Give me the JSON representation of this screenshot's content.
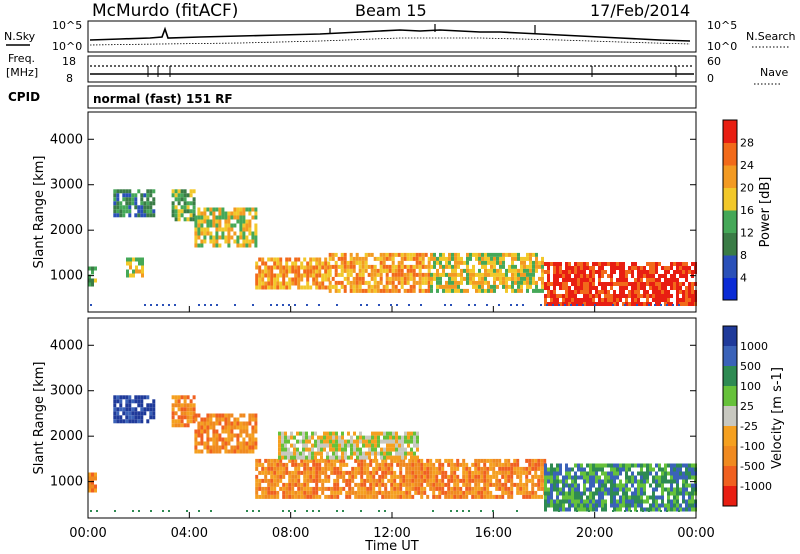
{
  "header": {
    "station": "McMurdo (fitACF)",
    "beam": "Beam 15",
    "date": "17/Feb/2014"
  },
  "top_panel": {
    "left_label": "N.Sky",
    "left_ticks": [
      "10^5",
      "10^0"
    ],
    "right_label": "N.Search",
    "right_ticks": [
      "10^5",
      "10^0"
    ],
    "freq_label_1": "Freq.",
    "freq_label_2": "[MHz]",
    "freq_ticks": [
      "18",
      "8"
    ],
    "nave_label": "Nave",
    "nave_ticks": [
      "60",
      "0"
    ],
    "cpid_label": "CPID",
    "mode_text": "normal (fast) 151 RF"
  },
  "x_axis": {
    "ticks": [
      "00:00",
      "04:00",
      "08:00",
      "12:00",
      "16:00",
      "20:00",
      "00:00"
    ],
    "label": "Time UT"
  },
  "colors": {
    "power": [
      "#0a2bd6",
      "#2a50b8",
      "#3a7c46",
      "#45a858",
      "#f2c82a",
      "#f39a22",
      "#f26a1a",
      "#e81e12"
    ],
    "velocity": [
      "#1f3a9a",
      "#3a62b8",
      "#2e8a52",
      "#66c13a",
      "#c8c8c0",
      "#f5a020",
      "#f08a20",
      "#f06020",
      "#e81e12"
    ]
  },
  "chart_data": [
    {
      "type": "heatmap",
      "title": "Power",
      "ylabel": "Slant Range [km]",
      "xlabel": "Time UT",
      "y_ticks": [
        1000,
        2000,
        3000,
        4000
      ],
      "ylim": [
        200,
        4600
      ],
      "xlim": [
        0,
        24
      ],
      "colorbar_label": "Power [dB]",
      "colorbar_ticks": [
        "4",
        "8",
        "12",
        "16",
        "20",
        "24",
        "28"
      ],
      "regions": [
        {
          "t0": 0.0,
          "t1": 0.3,
          "r0": 800,
          "r1": 1200,
          "level": 3
        },
        {
          "t0": 1.0,
          "t1": 2.6,
          "r0": 2300,
          "r1": 2900,
          "level": 2
        },
        {
          "t0": 1.5,
          "t1": 2.2,
          "r0": 1000,
          "r1": 1400,
          "level": 4
        },
        {
          "t0": 3.3,
          "t1": 4.2,
          "r0": 2200,
          "r1": 2900,
          "level": 3
        },
        {
          "t0": 4.2,
          "t1": 6.6,
          "r0": 1700,
          "r1": 2500,
          "level": 4
        },
        {
          "t0": 6.6,
          "t1": 9.5,
          "r0": 700,
          "r1": 1400,
          "level": 5
        },
        {
          "t0": 9.5,
          "t1": 13.5,
          "r0": 700,
          "r1": 1500,
          "level": 5
        },
        {
          "t0": 13.5,
          "t1": 18.0,
          "r0": 700,
          "r1": 1500,
          "level": 4
        },
        {
          "t0": 18.0,
          "t1": 24.0,
          "r0": 400,
          "r1": 1300,
          "level": 7
        }
      ]
    },
    {
      "type": "heatmap",
      "title": "Velocity",
      "ylabel": "Slant Range [km]",
      "xlabel": "Time UT",
      "y_ticks": [
        1000,
        2000,
        3000,
        4000
      ],
      "ylim": [
        200,
        4600
      ],
      "xlim": [
        0,
        24
      ],
      "colorbar_label": "Velocity [m s-1]",
      "colorbar_ticks": [
        "1000",
        "500",
        "100",
        "25",
        "-25",
        "-100",
        "-500",
        "-1000"
      ],
      "regions": [
        {
          "t0": 0.0,
          "t1": 0.3,
          "r0": 800,
          "r1": 1200,
          "level": 6
        },
        {
          "t0": 1.0,
          "t1": 2.6,
          "r0": 2300,
          "r1": 2900,
          "level": 0
        },
        {
          "t0": 3.3,
          "t1": 4.2,
          "r0": 2200,
          "r1": 2900,
          "level": 6
        },
        {
          "t0": 4.2,
          "t1": 6.6,
          "r0": 1700,
          "r1": 2500,
          "level": 6
        },
        {
          "t0": 6.6,
          "t1": 18.0,
          "r0": 700,
          "r1": 1500,
          "level": 6
        },
        {
          "t0": 7.5,
          "t1": 13.0,
          "r0": 1500,
          "r1": 2100,
          "level": 4
        },
        {
          "t0": 18.0,
          "t1": 24.0,
          "r0": 400,
          "r1": 1400,
          "level": 2
        }
      ]
    }
  ]
}
